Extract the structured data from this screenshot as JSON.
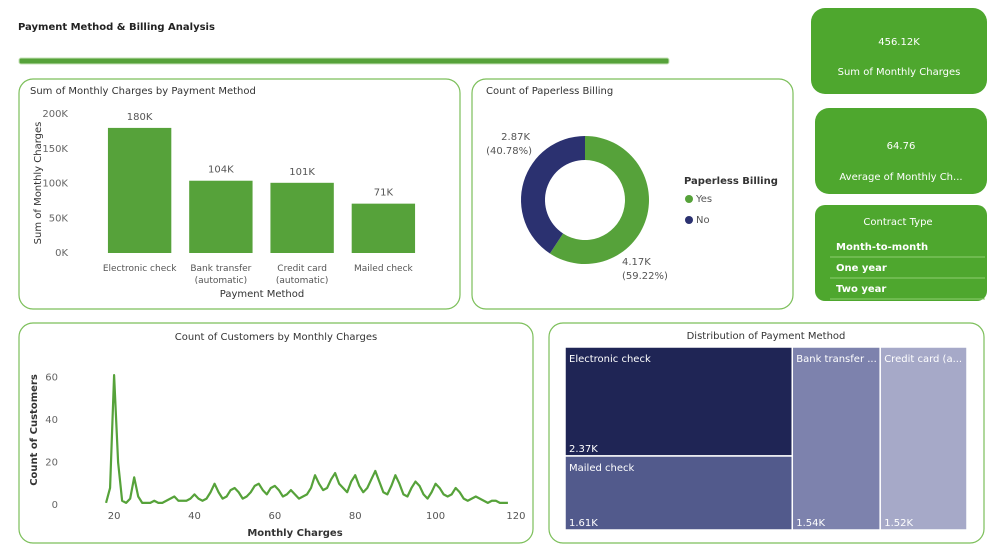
{
  "header": {
    "title": "Payment Method & Billing Analysis"
  },
  "kpis": [
    {
      "value": "456.12K",
      "label": "Sum of Monthly Charges"
    },
    {
      "value": "64.76",
      "label": "Average of Monthly Ch..."
    }
  ],
  "slicer": {
    "title": "Contract Type",
    "items": [
      "Month-to-month",
      "One year",
      "Two year"
    ]
  },
  "chart_data": [
    {
      "type": "bar",
      "title": "Sum of Monthly Charges by Payment Method",
      "x_label": "Payment Method",
      "y_label": "Sum of Monthly Charges",
      "categories": [
        "Electronic check",
        "Bank transfer (automatic)",
        "Credit card (automatic)",
        "Mailed check"
      ],
      "values": [
        180000,
        104000,
        101000,
        71000
      ],
      "value_labels": [
        "180K",
        "104K",
        "101K",
        "71K"
      ],
      "color": "#56a23a",
      "ylim": [
        0,
        200000
      ],
      "yticks": [
        {
          "value": 0,
          "label": "0K"
        },
        {
          "value": 50000,
          "label": "50K"
        },
        {
          "value": 100000,
          "label": "100K"
        },
        {
          "value": 150000,
          "label": "150K"
        },
        {
          "value": 200000,
          "label": "200K"
        }
      ]
    },
    {
      "type": "donut",
      "title": "Count of Paperless Billing",
      "legend_title": "Paperless Billing",
      "categories": [
        "Yes",
        "No"
      ],
      "values": [
        4170,
        2870
      ],
      "value_labels": [
        "4.17K",
        "2.87K"
      ],
      "percents": [
        59.22,
        40.78
      ],
      "percent_labels": [
        "(59.22%)",
        "(40.78%)"
      ],
      "colors": [
        "#56a23a",
        "#2b3170"
      ]
    },
    {
      "type": "line",
      "title": "Count of Customers by Monthly Charges",
      "x_label": "Monthly Charges",
      "y_label": "Count of Customers",
      "color": "#56a23a",
      "x": [
        18,
        19,
        20,
        21,
        22,
        23,
        24,
        25,
        26,
        27,
        28,
        29,
        30,
        31,
        32,
        33,
        34,
        35,
        36,
        37,
        38,
        39,
        40,
        41,
        42,
        43,
        44,
        45,
        46,
        47,
        48,
        49,
        50,
        51,
        52,
        53,
        54,
        55,
        56,
        57,
        58,
        59,
        60,
        61,
        62,
        63,
        64,
        65,
        66,
        67,
        68,
        69,
        70,
        71,
        72,
        73,
        74,
        75,
        76,
        77,
        78,
        79,
        80,
        81,
        82,
        83,
        84,
        85,
        86,
        87,
        88,
        89,
        90,
        91,
        92,
        93,
        94,
        95,
        96,
        97,
        98,
        99,
        100,
        101,
        102,
        103,
        104,
        105,
        106,
        107,
        108,
        109,
        110,
        111,
        112,
        113,
        114,
        115,
        116,
        117,
        118
      ],
      "values": [
        1,
        8,
        61,
        20,
        2,
        1,
        3,
        13,
        4,
        1,
        1,
        1,
        2,
        1,
        1,
        2,
        3,
        4,
        2,
        2,
        2,
        3,
        5,
        3,
        2,
        3,
        6,
        10,
        6,
        3,
        4,
        7,
        8,
        6,
        3,
        4,
        6,
        9,
        10,
        7,
        5,
        8,
        9,
        7,
        4,
        5,
        7,
        5,
        3,
        4,
        5,
        8,
        14,
        10,
        7,
        8,
        12,
        15,
        10,
        8,
        6,
        11,
        14,
        9,
        6,
        8,
        12,
        16,
        11,
        6,
        5,
        9,
        14,
        10,
        5,
        4,
        8,
        11,
        9,
        5,
        3,
        6,
        10,
        8,
        5,
        4,
        5,
        8,
        6,
        3,
        2,
        3,
        4,
        3,
        2,
        1,
        2,
        2,
        1,
        1,
        1
      ],
      "xlim": [
        15,
        122
      ],
      "xticks": [
        20,
        40,
        60,
        80,
        100,
        120
      ],
      "ylim": [
        0,
        70
      ],
      "yticks": [
        0,
        20,
        40,
        60
      ]
    },
    {
      "type": "treemap",
      "title": "Distribution of Payment Method",
      "categories": [
        "Electronic check",
        "Mailed check",
        "Bank transfer ...",
        "Credit card (a..."
      ],
      "values": [
        2370,
        1610,
        1540,
        1520
      ],
      "value_labels": [
        "2.37K",
        "1.61K",
        "1.54K",
        "1.52K"
      ],
      "colors": [
        "#1f2555",
        "#525a8c",
        "#7d82ad",
        "#a6a9c8"
      ]
    }
  ]
}
